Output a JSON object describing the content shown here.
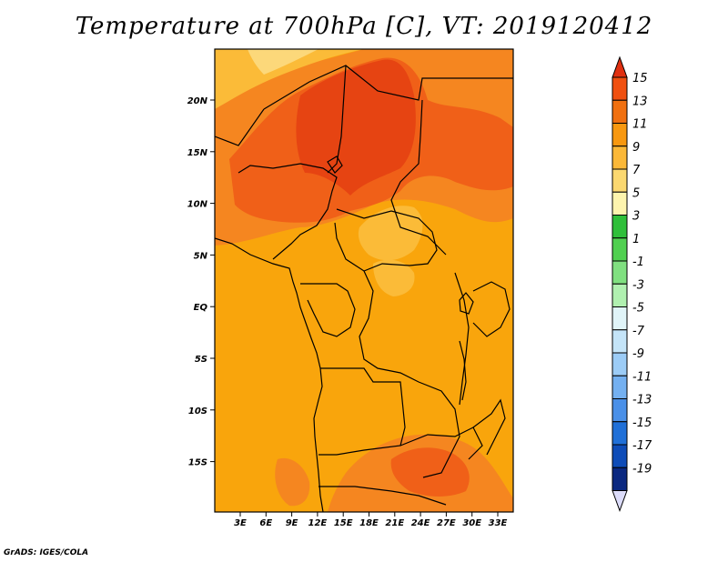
{
  "title": "Temperature at 700hPa [C], VT: 2019120412",
  "footer": "GrADS: IGES/COLA",
  "lat_ticks": [
    "20N",
    "15N",
    "10N",
    "5N",
    "EQ",
    "5S",
    "10S",
    "15S"
  ],
  "lon_ticks": [
    "3E",
    "6E",
    "9E",
    "12E",
    "15E",
    "18E",
    "21E",
    "24E",
    "27E",
    "30E",
    "33E"
  ],
  "colorbar": {
    "labels": [
      "15",
      "13",
      "11",
      "9",
      "7",
      "5",
      "3",
      "1",
      "-1",
      "-3",
      "-5",
      "-7",
      "-9",
      "-11",
      "-13",
      "-15",
      "-17",
      "-19"
    ],
    "colors": [
      "#e03010",
      "#f05010",
      "#f07010",
      "#f89810",
      "#fbb838",
      "#fbd870",
      "#fdf4ae",
      "#2fbf3a",
      "#50d050",
      "#80e080",
      "#b0f0b0",
      "#e0f4f8",
      "#c4e4f8",
      "#9cccf6",
      "#74b0f0",
      "#4a90e8",
      "#2070d8",
      "#0e4cb8",
      "#0a2880",
      "#061060",
      "#dcdcfa"
    ]
  },
  "field_colors": {
    "c15": "#e64412",
    "c13": "#f06018",
    "c11": "#f58620",
    "c9": "#f9a50c",
    "c7": "#fbbb38",
    "c5": "#fcd87a"
  }
}
